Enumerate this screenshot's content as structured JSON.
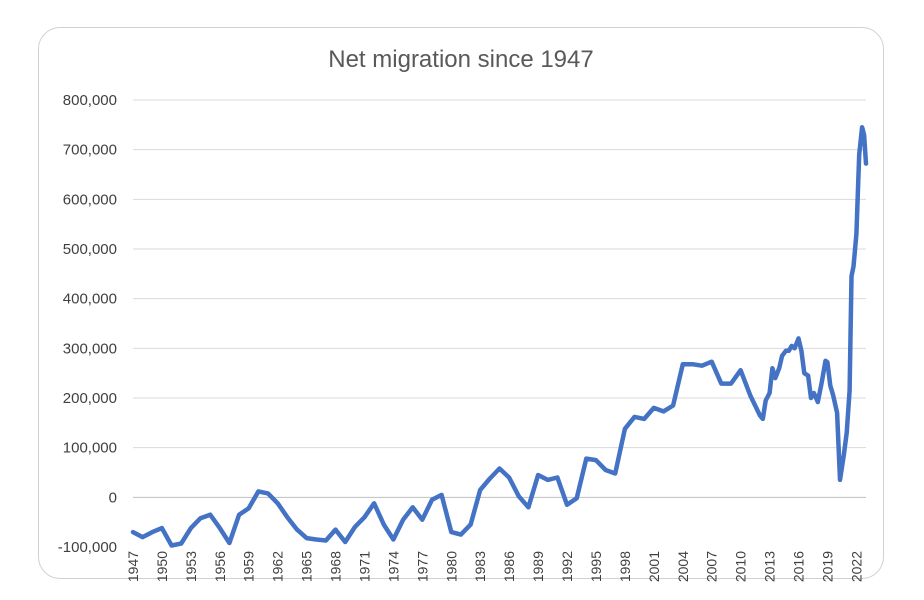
{
  "chart_data": {
    "type": "line",
    "title": "Net migration since 1947",
    "xlabel": "",
    "ylabel": "",
    "xlim": [
      1947,
      2023
    ],
    "ylim": [
      -100000,
      800000
    ],
    "y_ticks": [
      -100000,
      0,
      100000,
      200000,
      300000,
      400000,
      500000,
      600000,
      700000,
      800000
    ],
    "y_tick_labels": [
      "-100,000",
      "0",
      "100,000",
      "200,000",
      "300,000",
      "400,000",
      "500,000",
      "600,000",
      "700,000",
      "800,000"
    ],
    "x_ticks": [
      1947,
      1950,
      1953,
      1956,
      1959,
      1962,
      1965,
      1968,
      1971,
      1974,
      1977,
      1980,
      1983,
      1986,
      1989,
      1992,
      1995,
      1998,
      2001,
      2004,
      2007,
      2010,
      2013,
      2016,
      2019,
      2022
    ],
    "x_tick_labels": [
      "1947",
      "1950",
      "1953",
      "1956",
      "1959",
      "1962",
      "1965",
      "1968",
      "1971",
      "1974",
      "1977",
      "1980",
      "1983",
      "1986",
      "1989",
      "1992",
      "1995",
      "1998",
      "2001",
      "2004",
      "2007",
      "2010",
      "2013",
      "2016",
      "2019",
      "2022"
    ],
    "grid": true,
    "legend": "none",
    "series": [
      {
        "color": "#4472C4",
        "points": [
          [
            1947,
            -70000
          ],
          [
            1948,
            -80000
          ],
          [
            1949,
            -70000
          ],
          [
            1950,
            -62000
          ],
          [
            1951,
            -97000
          ],
          [
            1952,
            -93000
          ],
          [
            1953,
            -62000
          ],
          [
            1954,
            -42000
          ],
          [
            1955,
            -35000
          ],
          [
            1956,
            -62000
          ],
          [
            1957,
            -92000
          ],
          [
            1958,
            -35000
          ],
          [
            1959,
            -22000
          ],
          [
            1960,
            12000
          ],
          [
            1961,
            8000
          ],
          [
            1962,
            -12000
          ],
          [
            1963,
            -40000
          ],
          [
            1964,
            -65000
          ],
          [
            1965,
            -82000
          ],
          [
            1966,
            -85000
          ],
          [
            1967,
            -87000
          ],
          [
            1968,
            -65000
          ],
          [
            1969,
            -90000
          ],
          [
            1970,
            -60000
          ],
          [
            1971,
            -40000
          ],
          [
            1972,
            -12000
          ],
          [
            1973,
            -55000
          ],
          [
            1974,
            -85000
          ],
          [
            1975,
            -45000
          ],
          [
            1976,
            -20000
          ],
          [
            1977,
            -45000
          ],
          [
            1978,
            -5000
          ],
          [
            1979,
            5000
          ],
          [
            1980,
            -70000
          ],
          [
            1981,
            -75000
          ],
          [
            1982,
            -55000
          ],
          [
            1983,
            15000
          ],
          [
            1984,
            38000
          ],
          [
            1985,
            58000
          ],
          [
            1986,
            40000
          ],
          [
            1987,
            2000
          ],
          [
            1988,
            -20000
          ],
          [
            1989,
            45000
          ],
          [
            1990,
            35000
          ],
          [
            1991,
            40000
          ],
          [
            1992,
            -15000
          ],
          [
            1993,
            -2000
          ],
          [
            1994,
            78000
          ],
          [
            1995,
            75000
          ],
          [
            1996,
            55000
          ],
          [
            1997,
            48000
          ],
          [
            1998,
            138000
          ],
          [
            1999,
            162000
          ],
          [
            2000,
            158000
          ],
          [
            2001,
            180000
          ],
          [
            2002,
            173000
          ],
          [
            2003,
            185000
          ],
          [
            2004,
            268000
          ],
          [
            2005,
            268000
          ],
          [
            2006,
            265000
          ],
          [
            2007,
            273000
          ],
          [
            2008,
            229000
          ],
          [
            2009,
            229000
          ],
          [
            2010,
            256000
          ],
          [
            2011,
            205000
          ],
          [
            2012,
            165000
          ],
          [
            2012.3,
            158000
          ],
          [
            2012.6,
            195000
          ],
          [
            2013,
            210000
          ],
          [
            2013.3,
            260000
          ],
          [
            2013.6,
            240000
          ],
          [
            2014,
            260000
          ],
          [
            2014.3,
            285000
          ],
          [
            2014.7,
            295000
          ],
          [
            2015,
            295000
          ],
          [
            2015.3,
            305000
          ],
          [
            2015.6,
            300000
          ],
          [
            2016,
            320000
          ],
          [
            2016.3,
            295000
          ],
          [
            2016.6,
            250000
          ],
          [
            2017,
            245000
          ],
          [
            2017.3,
            200000
          ],
          [
            2017.6,
            210000
          ],
          [
            2018,
            192000
          ],
          [
            2018.4,
            230000
          ],
          [
            2018.8,
            275000
          ],
          [
            2019,
            272000
          ],
          [
            2019.3,
            225000
          ],
          [
            2019.6,
            205000
          ],
          [
            2020,
            170000
          ],
          [
            2020.3,
            35000
          ],
          [
            2020.7,
            85000
          ],
          [
            2021,
            130000
          ],
          [
            2021.3,
            215000
          ],
          [
            2021.5,
            445000
          ],
          [
            2021.7,
            465000
          ],
          [
            2022,
            530000
          ],
          [
            2022.3,
            690000
          ],
          [
            2022.6,
            745000
          ],
          [
            2022.8,
            730000
          ],
          [
            2023,
            672000
          ]
        ]
      }
    ]
  }
}
